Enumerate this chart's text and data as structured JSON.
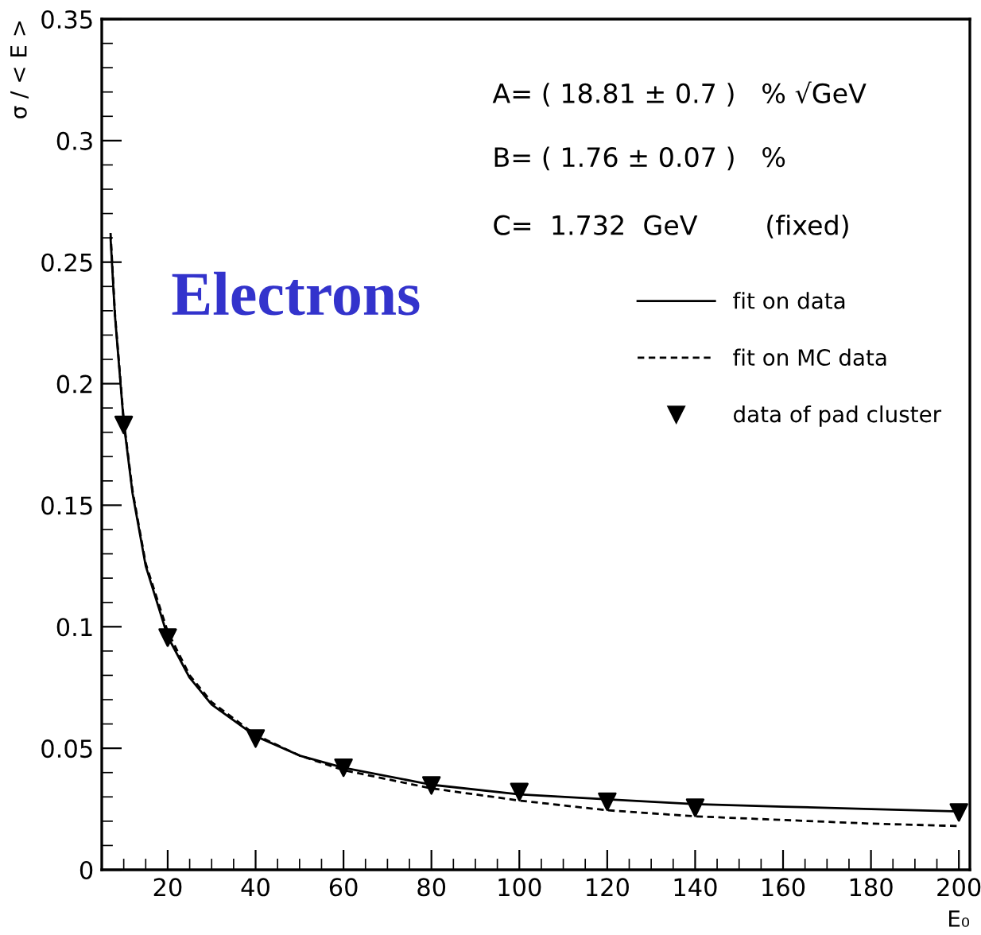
{
  "chart_data": {
    "type": "line",
    "xlabel": "E₀",
    "ylabel": "σ / < E >",
    "xlim": [
      5,
      202.5
    ],
    "ylim": [
      0,
      0.35
    ],
    "xticks": [
      20,
      40,
      60,
      80,
      100,
      120,
      140,
      160,
      180,
      200
    ],
    "yticks": [
      0,
      0.05,
      0.1,
      0.15,
      0.2,
      0.25,
      0.3,
      0.35
    ],
    "grid": false,
    "legend": "right",
    "annotations": [
      "A= ( 18.81 ± 0.7 )   % √GeV",
      "B= ( 1.76 ± 0.07 )   %",
      "C=  1.732  GeV        (fixed)",
      "Electrons"
    ],
    "series": [
      {
        "name": "fit on data",
        "color": "#000000",
        "line_style": "solid",
        "x": [
          7,
          8,
          10,
          12,
          15,
          20,
          25,
          30,
          40,
          50,
          60,
          80,
          100,
          120,
          140,
          160,
          180,
          200
        ],
        "values": [
          0.26,
          0.228,
          0.184,
          0.155,
          0.125,
          0.096,
          0.079,
          0.068,
          0.055,
          0.047,
          0.042,
          0.035,
          0.031,
          0.029,
          0.027,
          0.026,
          0.025,
          0.024
        ]
      },
      {
        "name": "fit on MC data",
        "color": "#000000",
        "line_style": "dashed",
        "x": [
          7,
          8,
          10,
          12,
          15,
          20,
          25,
          30,
          40,
          50,
          60,
          80,
          100,
          120,
          140,
          160,
          180,
          200
        ],
        "values": [
          0.262,
          0.229,
          0.185,
          0.156,
          0.126,
          0.098,
          0.08,
          0.069,
          0.0555,
          0.047,
          0.041,
          0.0335,
          0.0285,
          0.0245,
          0.022,
          0.0205,
          0.019,
          0.018
        ]
      },
      {
        "name": "data of pad cluster",
        "type": "scatter",
        "color": "#000000",
        "marker": "triangle",
        "x": [
          10,
          20,
          40,
          60,
          80,
          100,
          120,
          140,
          200
        ],
        "values": [
          0.183,
          0.0955,
          0.054,
          0.042,
          0.0347,
          0.032,
          0.028,
          0.0255,
          0.0236
        ]
      }
    ]
  }
}
